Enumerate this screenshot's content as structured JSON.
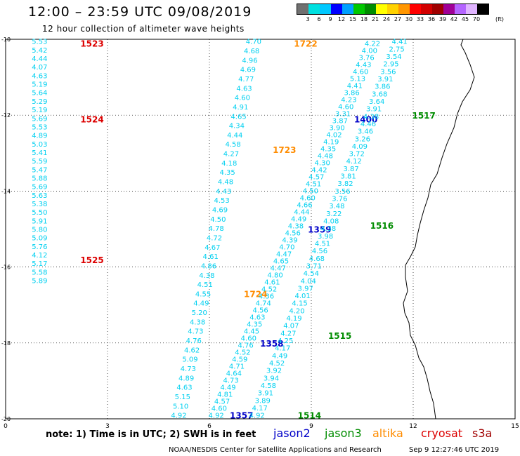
{
  "header": {
    "title": "12:00 – 23:59 UTC 09/08/2019",
    "subtitle": "12 hour collection of altimeter wave heights"
  },
  "colorbar": {
    "colors": [
      "#707070",
      "#00e0e0",
      "#00c8ff",
      "#0000ff",
      "#00a0ff",
      "#00c800",
      "#008c00",
      "#ffff00",
      "#ffd200",
      "#ff9600",
      "#ff0000",
      "#d20000",
      "#a00000",
      "#a00096",
      "#b464ff",
      "#e0b4ff",
      "#000000"
    ],
    "ticks": [
      "3",
      "6",
      "9",
      "12",
      "15",
      "18",
      "21",
      "24",
      "27",
      "30",
      "33",
      "36",
      "39",
      "42",
      "45",
      "70"
    ],
    "unit": "(ft)"
  },
  "footer": {
    "note": "note:  1) Time is in UTC;  2) SWH is in feet",
    "credit": "NOAA/NESDIS Center for Satellite Applications and Research",
    "timestamp": "Sep  9 12:27:46 UTC 2019"
  },
  "chart_data": {
    "type": "scatter",
    "title": "12:00 – 23:59 UTC 09/08/2019",
    "subtitle": "12 hour collection of altimeter wave heights",
    "xlim": [
      0,
      15
    ],
    "ylim": [
      -20,
      -10
    ],
    "x_ticks": [
      0,
      3,
      6,
      9,
      12,
      15
    ],
    "y_ticks": [
      -10,
      -12,
      -14,
      -16,
      -18,
      -20
    ],
    "grid": true,
    "legend": [
      {
        "name": "jason2",
        "color": "#0000c8"
      },
      {
        "name": "jason3",
        "color": "#008c00"
      },
      {
        "name": "altika",
        "color": "#ff8c00"
      },
      {
        "name": "cryosat",
        "color": "#dc0000"
      },
      {
        "name": "s3a",
        "color": "#a00000"
      }
    ],
    "series": [
      {
        "satellite": "cryosat",
        "x": 1.0,
        "lat_top": -10.05,
        "lat_bottom": -16.35,
        "values": [
          "5.53",
          "5.42",
          "4.44",
          "4.07",
          "4.63",
          "5.19",
          "5.64",
          "5.29",
          "5.19",
          "5.69",
          "5.53",
          "4.89",
          "5.03",
          "5.41",
          "5.59",
          "5.47",
          "5.88",
          "5.69",
          "5.63",
          "5.38",
          "5.50",
          "5.91",
          "5.80",
          "5.09",
          "5.76",
          "4.12",
          "5.17",
          "5.58",
          "5.89"
        ],
        "labels": [
          {
            "text": "1523",
            "lat": -10.1
          },
          {
            "text": "1524",
            "lat": -12.1
          },
          {
            "text": "1525",
            "lat": -15.8
          }
        ]
      },
      {
        "satellite": "altika",
        "x_top": 7.3,
        "x_bottom": 5.1,
        "lat_top": -10.05,
        "lat_bottom": -19.9,
        "values": [
          "4.70",
          "4.68",
          "4.96",
          "4.69",
          "4.77",
          "4.63",
          "4.60",
          "4.91",
          "4.65",
          "4.34",
          "4.44",
          "4.58",
          "4.27",
          "4.18",
          "4.35",
          "4.48",
          "4.43",
          "4.53",
          "4.69",
          "4.50",
          "4.78",
          "4.72",
          "4.67",
          "4.61",
          "4.86",
          "4.38",
          "4.51",
          "4.55",
          "4.49",
          "5.20",
          "4.38",
          "4.73",
          "4.76",
          "4.62",
          "5.09",
          "4.73",
          "4.89",
          "4.63",
          "5.15",
          "5.10",
          "4.92"
        ],
        "labels": [
          {
            "text": "1722",
            "lat": -10.1
          },
          {
            "text": "1723",
            "lat": -12.9
          },
          {
            "text": "1724",
            "lat": -16.7
          }
        ]
      },
      {
        "satellite": "jason2",
        "x_top": 10.8,
        "x_bottom": 6.2,
        "lat_top": -10.1,
        "lat_bottom": -19.9,
        "values": [
          "4.22",
          "4.00",
          "3.76",
          "4.43",
          "4.60",
          "5.13",
          "4.41",
          "3.86",
          "4.23",
          "4.60",
          "3.31",
          "3.87",
          "3.90",
          "4.02",
          "4.19",
          "4.35",
          "4.48",
          "4.30",
          "4.42",
          "4.57",
          "4.51",
          "4.50",
          "4.60",
          "4.66",
          "4.44",
          "4.49",
          "4.38",
          "4.56",
          "4.39",
          "4.70",
          "4.47",
          "4.65",
          "4.47",
          "4.80",
          "4.61",
          "4.52",
          "4.36",
          "4.74",
          "4.56",
          "4.63",
          "4.35",
          "4.45",
          "4.60",
          "4.76",
          "4.52",
          "4.59",
          "4.71",
          "4.64",
          "4.73",
          "4.49",
          "4.81",
          "4.57",
          "4.60",
          "4.92"
        ],
        "labels": [
          {
            "text": "1400",
            "lat": -12.1
          },
          {
            "text": "1359",
            "lat": -15.0
          },
          {
            "text": "1358",
            "lat": -18.0
          },
          {
            "text": "1357",
            "lat": -19.9
          }
        ]
      },
      {
        "satellite": "jason3",
        "x_top": 11.6,
        "x_bottom": 7.4,
        "lat_top": -10.05,
        "lat_bottom": -19.9,
        "values": [
          "4.41",
          "2.75",
          "3.54",
          "2.95",
          "3.56",
          "3.91",
          "3.86",
          "3.68",
          "3.64",
          "3.91",
          "4.38",
          "4.46",
          "3.46",
          "3.26",
          "4.09",
          "3.72",
          "4.12",
          "3.87",
          "3.81",
          "3.82",
          "3.56",
          "3.76",
          "3.48",
          "3.22",
          "4.08",
          "4.38",
          "3.98",
          "4.51",
          "4.56",
          "4.68",
          "3.71",
          "4.54",
          "4.04",
          "3.97",
          "4.01",
          "4.15",
          "4.20",
          "4.19",
          "4.07",
          "4.27",
          "4.25",
          "4.17",
          "4.49",
          "4.52",
          "3.92",
          "3.94",
          "4.58",
          "3.91",
          "3.89",
          "4.17",
          "4.92"
        ],
        "labels": [
          {
            "text": "1517",
            "lat": -12.0
          },
          {
            "text": "1516",
            "lat": -14.9
          },
          {
            "text": "1515",
            "lat": -17.8
          },
          {
            "text": "1514",
            "lat": -19.9
          }
        ]
      }
    ]
  }
}
